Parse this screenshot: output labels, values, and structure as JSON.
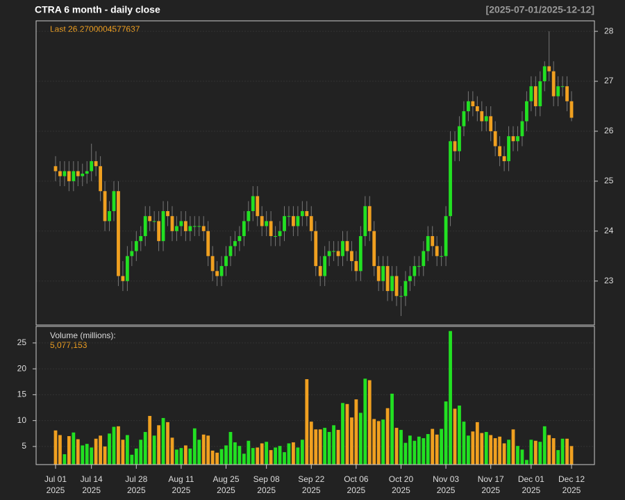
{
  "chart_data": [
    {
      "type": "candlestick",
      "title": "CTRA  6 month - daily close",
      "subtitle": "[2025-07-01/2025-12-12]",
      "annotation": "Last 26.2700004577637",
      "up_color": "#22e022",
      "down_color": "#f0a020",
      "x": [
        "2025-07-01",
        "2025-07-02",
        "2025-07-03",
        "2025-07-07",
        "2025-07-08",
        "2025-07-09",
        "2025-07-10",
        "2025-07-11",
        "2025-07-14",
        "2025-07-15",
        "2025-07-16",
        "2025-07-17",
        "2025-07-18",
        "2025-07-21",
        "2025-07-22",
        "2025-07-23",
        "2025-07-24",
        "2025-07-25",
        "2025-07-28",
        "2025-07-29",
        "2025-07-30",
        "2025-07-31",
        "2025-08-01",
        "2025-08-04",
        "2025-08-05",
        "2025-08-06",
        "2025-08-07",
        "2025-08-08",
        "2025-08-11",
        "2025-08-12",
        "2025-08-13",
        "2025-08-14",
        "2025-08-15",
        "2025-08-18",
        "2025-08-19",
        "2025-08-20",
        "2025-08-21",
        "2025-08-22",
        "2025-08-25",
        "2025-08-26",
        "2025-08-27",
        "2025-08-28",
        "2025-08-29",
        "2025-09-02",
        "2025-09-03",
        "2025-09-04",
        "2025-09-05",
        "2025-09-08",
        "2025-09-09",
        "2025-09-10",
        "2025-09-11",
        "2025-09-12",
        "2025-09-15",
        "2025-09-16",
        "2025-09-17",
        "2025-09-18",
        "2025-09-19",
        "2025-09-22",
        "2025-09-23",
        "2025-09-24",
        "2025-09-25",
        "2025-09-26",
        "2025-09-29",
        "2025-09-30",
        "2025-10-01",
        "2025-10-02",
        "2025-10-03",
        "2025-10-06",
        "2025-10-07",
        "2025-10-08",
        "2025-10-09",
        "2025-10-10",
        "2025-10-13",
        "2025-10-14",
        "2025-10-15",
        "2025-10-16",
        "2025-10-17",
        "2025-10-20",
        "2025-10-21",
        "2025-10-22",
        "2025-10-23",
        "2025-10-24",
        "2025-10-27",
        "2025-10-28",
        "2025-10-29",
        "2025-10-30",
        "2025-10-31",
        "2025-11-03",
        "2025-11-04",
        "2025-11-05",
        "2025-11-06",
        "2025-11-07",
        "2025-11-10",
        "2025-11-11",
        "2025-11-12",
        "2025-11-13",
        "2025-11-14",
        "2025-11-17",
        "2025-11-18",
        "2025-11-19",
        "2025-11-20",
        "2025-11-21",
        "2025-11-24",
        "2025-11-25",
        "2025-11-26",
        "2025-11-28",
        "2025-12-01",
        "2025-12-02",
        "2025-12-03",
        "2025-12-04",
        "2025-12-05",
        "2025-12-08",
        "2025-12-09",
        "2025-12-10",
        "2025-12-11",
        "2025-12-12"
      ],
      "open": [
        25.3,
        25.2,
        25.1,
        25.2,
        25.0,
        25.2,
        25.1,
        25.15,
        25.2,
        25.4,
        25.3,
        24.8,
        24.2,
        24.4,
        24.8,
        23.1,
        23.0,
        23.5,
        23.6,
        23.8,
        23.9,
        24.3,
        24.2,
        24.2,
        23.8,
        24.4,
        24.3,
        24.0,
        24.1,
        24.2,
        24.0,
        24.1,
        24.1,
        24.1,
        24.0,
        23.5,
        23.2,
        23.1,
        23.3,
        23.5,
        23.7,
        23.8,
        23.9,
        24.2,
        24.4,
        24.7,
        24.3,
        24.1,
        24.2,
        23.9,
        23.9,
        24.0,
        24.3,
        24.3,
        24.1,
        24.3,
        24.4,
        24.3,
        24.0,
        23.3,
        23.1,
        23.5,
        23.6,
        23.6,
        23.5,
        23.8,
        23.6,
        23.4,
        23.2,
        23.9,
        24.5,
        24.0,
        23.3,
        23.0,
        23.3,
        22.8,
        23.1,
        22.7,
        22.7,
        23.0,
        23.1,
        23.3,
        23.3,
        23.6,
        23.9,
        23.7,
        23.5,
        23.5,
        24.3,
        25.8,
        25.6,
        26.1,
        26.4,
        26.6,
        26.5,
        26.4,
        26.2,
        26.3,
        26.0,
        25.7,
        25.5,
        25.4,
        25.9,
        25.8,
        25.9,
        26.2,
        26.6,
        26.9,
        26.5,
        27.0,
        27.3,
        27.2,
        26.7,
        26.9,
        26.9,
        26.6
      ],
      "high": [
        25.5,
        25.4,
        25.4,
        25.4,
        25.4,
        25.4,
        25.35,
        25.4,
        25.75,
        25.6,
        25.5,
        25.0,
        24.6,
        25.0,
        25.0,
        23.4,
        23.7,
        23.8,
        24.0,
        24.1,
        24.5,
        24.5,
        24.4,
        24.4,
        24.6,
        24.6,
        24.5,
        24.3,
        24.4,
        24.4,
        24.3,
        24.3,
        24.3,
        24.3,
        24.2,
        23.7,
        23.4,
        23.5,
        23.7,
        23.9,
        24.0,
        24.1,
        24.4,
        24.6,
        24.9,
        24.9,
        24.5,
        24.4,
        24.4,
        24.1,
        24.2,
        24.5,
        24.5,
        24.5,
        24.5,
        24.6,
        24.6,
        24.5,
        24.2,
        23.5,
        23.7,
        23.8,
        23.8,
        23.8,
        24.0,
        24.0,
        23.8,
        23.6,
        24.1,
        24.7,
        24.7,
        24.2,
        23.5,
        23.5,
        23.5,
        23.3,
        23.3,
        22.9,
        23.2,
        23.3,
        23.5,
        23.5,
        23.8,
        24.1,
        24.1,
        23.9,
        23.7,
        24.5,
        26.0,
        26.0,
        26.3,
        26.6,
        26.8,
        26.8,
        26.7,
        26.6,
        26.5,
        26.5,
        26.2,
        25.9,
        25.7,
        26.1,
        26.1,
        26.1,
        26.4,
        26.8,
        27.1,
        27.1,
        27.2,
        27.4,
        28.0,
        27.4,
        27.1,
        27.1,
        27.1,
        26.8
      ],
      "low": [
        25.0,
        24.9,
        24.9,
        24.8,
        24.8,
        24.9,
        24.9,
        24.95,
        25.0,
        25.1,
        24.6,
        24.0,
        24.0,
        24.2,
        22.9,
        22.8,
        22.8,
        23.3,
        23.4,
        23.6,
        23.7,
        24.0,
        24.0,
        23.6,
        23.6,
        24.1,
        23.8,
        23.8,
        23.9,
        23.8,
        23.8,
        23.9,
        23.9,
        23.8,
        23.3,
        23.0,
        22.9,
        22.9,
        23.1,
        23.3,
        23.5,
        23.6,
        23.7,
        24.0,
        24.2,
        24.1,
        23.9,
        23.9,
        23.7,
        23.7,
        23.7,
        23.8,
        24.1,
        23.9,
        23.9,
        24.1,
        24.1,
        23.8,
        23.1,
        22.9,
        22.9,
        23.3,
        23.4,
        23.3,
        23.3,
        23.4,
        23.2,
        23.0,
        23.0,
        23.7,
        23.8,
        23.1,
        22.8,
        22.8,
        22.6,
        22.6,
        22.5,
        22.3,
        22.5,
        22.8,
        22.9,
        23.1,
        23.1,
        23.4,
        23.5,
        23.3,
        23.3,
        23.3,
        24.1,
        25.4,
        25.4,
        25.9,
        26.2,
        26.3,
        26.2,
        26.0,
        26.0,
        25.8,
        25.5,
        25.3,
        25.2,
        25.2,
        25.6,
        25.6,
        25.7,
        26.0,
        26.4,
        26.3,
        26.3,
        26.8,
        27.0,
        26.5,
        26.5,
        26.7,
        26.4,
        26.2
      ],
      "close": [
        25.2,
        25.1,
        25.2,
        25.0,
        25.2,
        25.1,
        25.15,
        25.2,
        25.4,
        25.3,
        24.8,
        24.2,
        24.4,
        24.8,
        23.1,
        23.0,
        23.5,
        23.6,
        23.8,
        23.9,
        24.3,
        24.2,
        24.2,
        23.8,
        24.4,
        24.3,
        24.0,
        24.1,
        24.2,
        24.0,
        24.1,
        24.1,
        24.1,
        24.0,
        23.5,
        23.2,
        23.1,
        23.3,
        23.5,
        23.7,
        23.8,
        23.9,
        24.2,
        24.4,
        24.7,
        24.3,
        24.1,
        24.2,
        23.9,
        23.9,
        24.0,
        24.3,
        24.3,
        24.1,
        24.3,
        24.4,
        24.3,
        24.0,
        23.3,
        23.1,
        23.5,
        23.6,
        23.6,
        23.5,
        23.8,
        23.6,
        23.4,
        23.2,
        23.9,
        24.5,
        24.0,
        23.3,
        23.0,
        23.3,
        22.8,
        23.1,
        22.7,
        22.7,
        23.0,
        23.1,
        23.3,
        23.3,
        23.6,
        23.9,
        23.7,
        23.5,
        23.5,
        24.3,
        25.8,
        25.6,
        26.1,
        26.4,
        26.6,
        26.5,
        26.4,
        26.2,
        26.3,
        26.0,
        25.7,
        25.5,
        25.4,
        25.9,
        25.8,
        25.9,
        26.2,
        26.6,
        26.9,
        26.5,
        27.0,
        27.3,
        27.2,
        26.7,
        26.9,
        26.9,
        26.6,
        26.2700004577637
      ],
      "ylim": [
        22.12,
        28.21
      ],
      "yticks": [
        23,
        24,
        25,
        26,
        27,
        28
      ],
      "xticks": [
        {
          "value": "2025-07-01",
          "label": "Jul 01 2025"
        },
        {
          "value": "2025-07-14",
          "label": "Jul 14 2025"
        },
        {
          "value": "2025-07-28",
          "label": "Jul 28 2025"
        },
        {
          "value": "2025-08-11",
          "label": "Aug 11 2025"
        },
        {
          "value": "2025-08-25",
          "label": "Aug 25 2025"
        },
        {
          "value": "2025-09-08",
          "label": "Sep 08 2025"
        },
        {
          "value": "2025-09-22",
          "label": "Sep 22 2025"
        },
        {
          "value": "2025-10-06",
          "label": "Oct 06 2025"
        },
        {
          "value": "2025-10-20",
          "label": "Oct 20 2025"
        },
        {
          "value": "2025-11-03",
          "label": "Nov 03 2025"
        },
        {
          "value": "2025-11-17",
          "label": "Nov 17 2025"
        },
        {
          "value": "2025-12-01",
          "label": "Dec 01 2025"
        },
        {
          "value": "2025-12-12",
          "label": "Dec 12 2025"
        }
      ],
      "grid": true
    },
    {
      "type": "bar",
      "title": "Volume (millions):",
      "last_value_label": "5,077,153",
      "values": [
        8.1,
        7.2,
        3.5,
        7,
        7.7,
        6.4,
        5.2,
        5.5,
        4.8,
        6.5,
        7.1,
        5.0,
        7.5,
        8.8,
        8.9,
        6.3,
        7.2,
        3.4,
        4.6,
        6.3,
        7.8,
        10.9,
        7.1,
        9.1,
        10.5,
        9.7,
        6.7,
        4.4,
        4.7,
        5.2,
        4.6,
        8.5,
        6.3,
        7.3,
        7.1,
        4.2,
        3.8,
        4.5,
        5.2,
        7.8,
        5.8,
        5.1,
        3.6,
        6.1,
        4.7,
        4.8,
        5.6,
        5.9,
        4.3,
        4.8,
        5.1,
        3.9,
        5.6,
        5.8,
        4.8,
        6.3,
        18,
        9.8,
        8.3,
        8.3,
        8.6,
        7.8,
        9.1,
        8.2,
        13.4,
        13.2,
        10.6,
        14.1,
        11.5,
        18.1,
        17.8,
        10.3,
        9.9,
        10.2,
        12.4,
        15.2,
        8.6,
        8.2,
        5.7,
        7.1,
        6.1,
        6.9,
        6.6,
        7.4,
        8.4,
        7.3,
        8.4,
        13.7,
        27.3,
        12.3,
        12.9,
        9.8,
        7.1,
        7.9,
        9.7,
        7.6,
        7.8,
        7.2,
        6.6,
        6.9,
        5.6,
        6.3,
        8.3,
        5.1,
        4.4,
        2.4,
        6.3,
        6.1,
        5.9,
        8.9,
        7.2,
        6.6,
        4.3,
        6.5,
        6.5,
        5.077153
      ],
      "ylim": [
        1.5,
        28.2
      ],
      "yticks": [
        5,
        10,
        15,
        20,
        25
      ],
      "grid": true
    }
  ]
}
